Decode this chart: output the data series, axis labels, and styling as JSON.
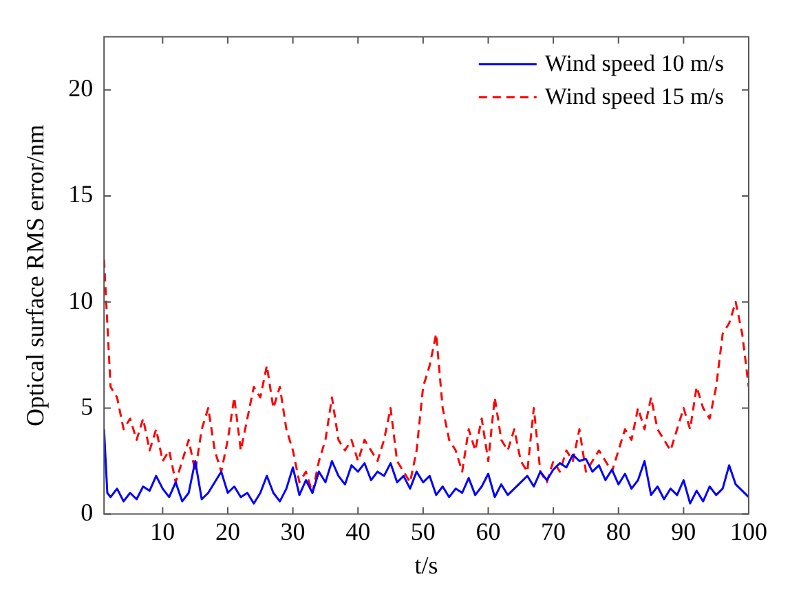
{
  "chart_data": {
    "type": "line",
    "xlabel": "t/s",
    "ylabel": "Optical surface RMS error/nm",
    "x": [
      1,
      1.5,
      2,
      3,
      4,
      5,
      6,
      7,
      8,
      9,
      10,
      11,
      12,
      13,
      14,
      15,
      16,
      17,
      18,
      19,
      20,
      21,
      22,
      23,
      24,
      25,
      26,
      27,
      28,
      29,
      30,
      31,
      32,
      33,
      34,
      35,
      36,
      37,
      38,
      39,
      40,
      41,
      42,
      43,
      44,
      45,
      46,
      47,
      48,
      49,
      50,
      51,
      52,
      53,
      54,
      55,
      56,
      57,
      58,
      59,
      60,
      61,
      62,
      63,
      64,
      65,
      66,
      67,
      68,
      69,
      70,
      71,
      72,
      73,
      74,
      75,
      76,
      77,
      78,
      79,
      80,
      81,
      82,
      83,
      84,
      85,
      86,
      87,
      88,
      89,
      90,
      91,
      92,
      93,
      94,
      95,
      96,
      97,
      98,
      99,
      100
    ],
    "series": [
      {
        "name": "Wind speed 10 m/s",
        "color": "#0000ff",
        "line_style": "solid",
        "values": [
          4,
          1,
          0.8,
          1.2,
          0.6,
          1,
          0.7,
          1.3,
          1.1,
          1.8,
          1.2,
          0.8,
          1.5,
          0.6,
          1,
          2.5,
          0.7,
          1,
          1.5,
          2,
          1,
          1.3,
          0.8,
          1,
          0.5,
          1,
          1.8,
          1,
          0.6,
          1.2,
          2.2,
          0.9,
          1.6,
          1,
          2,
          1.5,
          2.5,
          1.8,
          1.4,
          2.3,
          2,
          2.4,
          1.6,
          2,
          1.8,
          2.4,
          1.5,
          1.8,
          1.2,
          2,
          1.5,
          1.8,
          0.9,
          1.3,
          0.8,
          1.2,
          1,
          1.7,
          0.9,
          1.3,
          1.9,
          0.8,
          1.4,
          0.9,
          1.2,
          1.5,
          1.8,
          1.3,
          2,
          1.6,
          2.1,
          2.4,
          2.2,
          2.8,
          2.5,
          2.6,
          2,
          2.3,
          1.6,
          2.1,
          1.4,
          1.9,
          1.2,
          1.6,
          2.5,
          0.9,
          1.3,
          0.7,
          1.2,
          0.9,
          1.6,
          0.5,
          1.1,
          0.6,
          1.3,
          0.9,
          1.2,
          2.3,
          1.4,
          1.1,
          0.8
        ]
      },
      {
        "name": "Wind speed 15 m/s",
        "color": "#ff0000",
        "line_style": "dashed",
        "values": [
          12,
          9,
          6,
          5.5,
          4,
          4.5,
          3.5,
          4.5,
          3,
          4,
          2.5,
          3,
          1.5,
          2.5,
          3.5,
          2,
          4,
          5,
          3,
          2,
          3.5,
          5.5,
          3,
          4.5,
          6,
          5.5,
          7,
          5,
          6,
          4,
          3,
          1.5,
          2,
          1,
          2.5,
          3.5,
          5.5,
          3.5,
          3,
          3.5,
          2.5,
          3.5,
          3,
          2.5,
          3.5,
          5,
          2.5,
          2,
          1.5,
          3,
          6,
          7,
          8.5,
          5,
          3.5,
          3,
          2,
          4,
          3,
          4.5,
          2.5,
          5.5,
          3.5,
          3,
          4,
          2.5,
          2,
          5,
          2,
          1.5,
          2.5,
          2,
          3,
          2.5,
          4,
          2,
          2.5,
          3,
          2.5,
          2,
          3,
          4,
          3.5,
          5,
          4,
          5.5,
          4,
          3.5,
          3,
          4,
          5,
          4,
          6,
          5,
          4.5,
          6,
          8.5,
          9,
          10,
          8.5,
          6
        ]
      }
    ],
    "xlim": [
      1,
      100
    ],
    "xticks": [
      10,
      20,
      30,
      40,
      50,
      60,
      70,
      80,
      90,
      100
    ],
    "ylim": [
      0,
      22.5
    ],
    "yticks": [
      0,
      5,
      10,
      15,
      20
    ],
    "grid": false,
    "legend": "top right"
  }
}
